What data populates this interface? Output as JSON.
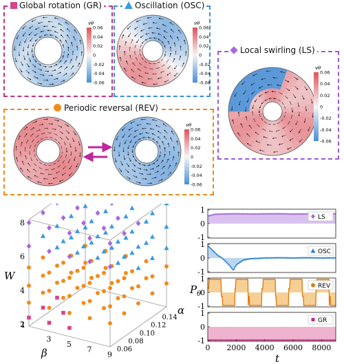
{
  "panels": {
    "gr": {
      "title": "Global rotation (GR)",
      "color": "#c2307e",
      "marker": "square",
      "marker_color": "#d6458e"
    },
    "osc": {
      "title": "Oscillation (OSC)",
      "color": "#3a8fd9",
      "marker": "triangle",
      "marker_color": "#3a9ae0"
    },
    "ls": {
      "title": "Local swirling (LS)",
      "color": "#9b5ad6",
      "marker": "diamond",
      "marker_color": "#a868dd"
    },
    "rev": {
      "title": "Periodic reversal (REV)",
      "color": "#ea8a1e",
      "marker": "circle",
      "marker_color": "#f08c1c"
    },
    "reversal_arrow_color": "#c0269a"
  },
  "colorbar": {
    "label": "vθ",
    "ticks": [
      "0.06",
      "0.04",
      "0.02",
      "0",
      "-0.02",
      "-0.04",
      "-0.06"
    ],
    "colors": {
      "high": "#e0525a",
      "mid": "#f5f5f5",
      "low": "#4a8fd6"
    }
  },
  "phase_diagram": {
    "zlabel": "W",
    "xlabel": "β",
    "ylabel": "α",
    "z_ticks": [
      "2",
      "4",
      "6",
      "8"
    ],
    "beta_ticks": [
      "1",
      "3",
      "5",
      "7",
      "9"
    ],
    "alpha_ticks": [
      "0.06",
      "0.08",
      "0.10",
      "0.12",
      "0.14"
    ]
  },
  "chart_data": {
    "type": "line",
    "xlabel": "t",
    "ylabel": "Pθ",
    "x_ticks": [
      "0",
      "2000",
      "4000",
      "6000",
      "8000"
    ],
    "xlim": [
      0,
      9000
    ],
    "ylim": [
      -1,
      1
    ],
    "y_ticks": [
      "1",
      "0",
      "-1"
    ],
    "series": [
      {
        "name": "LS",
        "color": "#a46ad8",
        "fill": "#d9c2ef",
        "marker": "diamond",
        "description_values": {
          "t": [
            0,
            500,
            1000,
            2000,
            3000,
            4000,
            5000,
            6000,
            7000,
            8000,
            9000
          ],
          "y": [
            0.55,
            0.68,
            0.7,
            0.72,
            0.7,
            0.71,
            0.72,
            0.7,
            0.71,
            0.7,
            0.72
          ]
        }
      },
      {
        "name": "OSC",
        "color": "#2d7fd2",
        "fill": "#b9d7f1",
        "marker": "triangle",
        "description_values": {
          "t": [
            0,
            300,
            700,
            1000,
            1500,
            1800,
            2000,
            2500,
            3000,
            4000,
            5000,
            6000,
            7000,
            8000,
            9000
          ],
          "y": [
            0.9,
            0.6,
            0.2,
            0.0,
            -0.5,
            -0.9,
            -0.5,
            -0.15,
            -0.05,
            0.0,
            0.02,
            0.0,
            0.02,
            0.0,
            0.01
          ]
        }
      },
      {
        "name": "REV",
        "color": "#e07d14",
        "fill": "#f6cf95",
        "marker": "circle",
        "period": 1900,
        "amplitude": 0.95
      },
      {
        "name": "GR",
        "color": "#c2307e",
        "fill": "#efb3cf",
        "marker": "square",
        "description_values": {
          "t": [
            0,
            9000
          ],
          "y": [
            -0.97,
            -0.97
          ]
        }
      }
    ]
  }
}
